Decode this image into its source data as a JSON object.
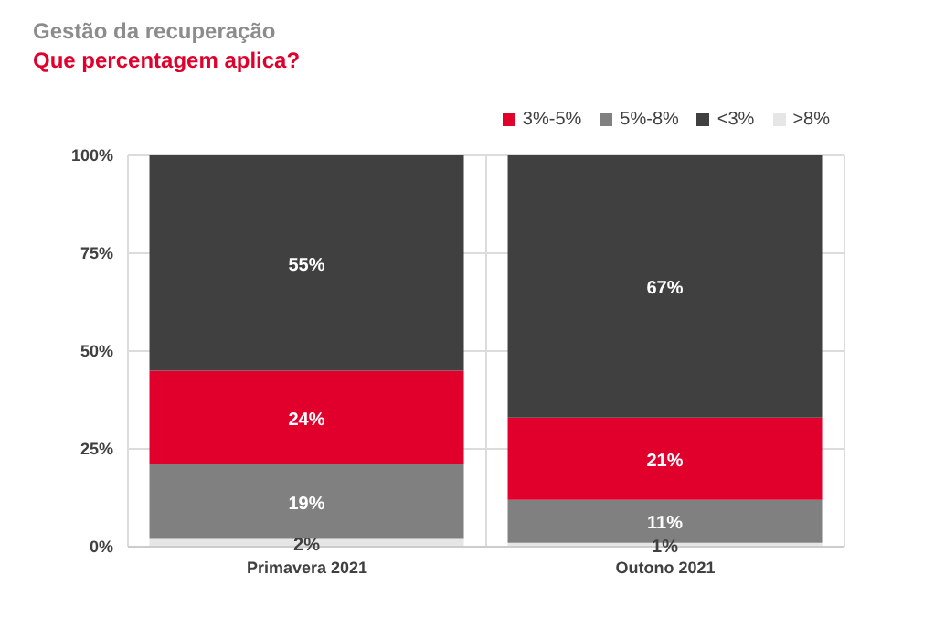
{
  "chart_data": {
    "type": "bar",
    "title": "Gestão da recuperação",
    "subtitle": "Que percentagem aplica?",
    "categories": [
      "Primavera 2021",
      "Outono 2021"
    ],
    "stacked": true,
    "series": [
      {
        "name": ">8%",
        "color": "#e6e6e6",
        "values": [
          2,
          1
        ],
        "value_labels": [
          "2%",
          "1%"
        ]
      },
      {
        "name": "5%-8%",
        "color": "#808080",
        "values": [
          19,
          11
        ],
        "value_labels": [
          "19%",
          "11%"
        ]
      },
      {
        "name": "3%-5%",
        "color": "#e0002b",
        "values": [
          24,
          21
        ],
        "value_labels": [
          "24%",
          "21%"
        ]
      },
      {
        "name": "<3%",
        "color": "#404040",
        "values": [
          55,
          67
        ],
        "value_labels": [
          "55%",
          "67%"
        ]
      }
    ],
    "ylim": [
      0,
      100
    ],
    "yticks": [
      {
        "value": 0,
        "label": "0%"
      },
      {
        "value": 25,
        "label": "25%"
      },
      {
        "value": 50,
        "label": "50%"
      },
      {
        "value": 75,
        "label": "75%"
      },
      {
        "value": 100,
        "label": "100%"
      }
    ],
    "grid": true,
    "legend": "top right"
  }
}
